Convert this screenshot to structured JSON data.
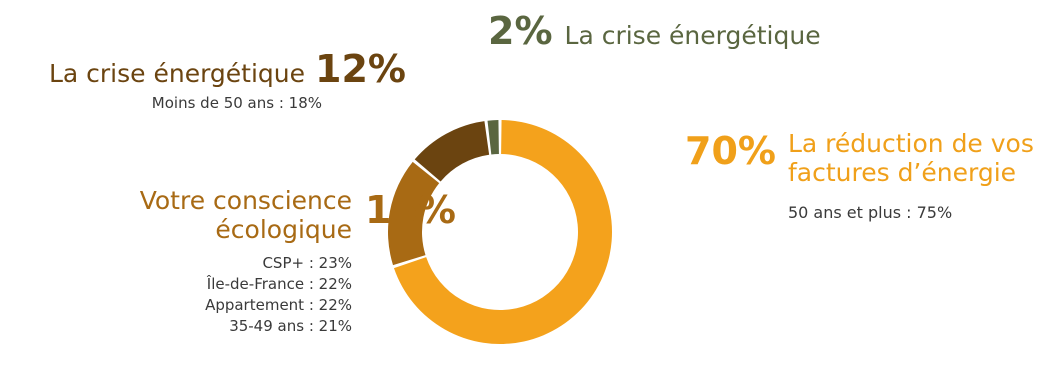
{
  "chart_data": {
    "type": "pie",
    "style": "donut",
    "slices": [
      {
        "label": "La réduction de vos factures d’énergie",
        "value": 70,
        "value_label": "70%",
        "color": "#f4a21c",
        "details": [
          "50 ans et plus : 75%"
        ]
      },
      {
        "label": "Votre conscience écologique",
        "value": 16,
        "value_label": "16%",
        "color": "#a86a14",
        "details": [
          "CSP+ : 23%",
          "Île-de-France : 22%",
          "Appartement : 22%",
          "35-49 ans : 21%"
        ]
      },
      {
        "label": "La crise énergétique",
        "value": 12,
        "value_label": "12%",
        "color": "#6b4410",
        "details": [
          "Moins de 50 ans : 18%"
        ]
      },
      {
        "label": "La crise énergétique",
        "value": 2,
        "value_label": "2%",
        "color": "#5a6640",
        "details": []
      }
    ]
  }
}
